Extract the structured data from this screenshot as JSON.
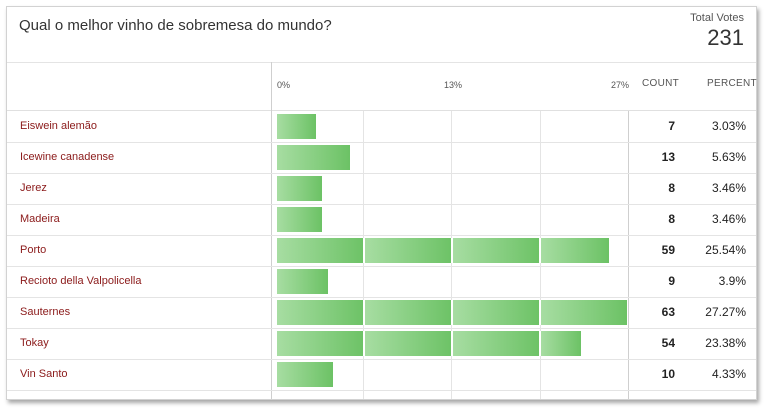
{
  "poll": {
    "question": "Qual o melhor vinho de sobremesa do mundo?",
    "total_votes_label": "Total Votes",
    "total_votes": "231"
  },
  "columns": {
    "scale_labels": [
      "0%",
      "13%",
      "27%"
    ],
    "count_label": "COUNT",
    "percent_label": "PERCENT"
  },
  "colors": {
    "bar_light": "#a7dda2",
    "bar_dark": "#6cc265",
    "label_red": "#8b1a1a"
  },
  "chart_data": {
    "type": "bar",
    "xlim": [
      0,
      27
    ],
    "categories": [
      "Eiswein alemão",
      "Icewine canadense",
      "Jerez",
      "Madeira",
      "Porto",
      "Recioto della Valpolicella",
      "Sauternes",
      "Tokay",
      "Vin Santo"
    ],
    "values": [
      3.03,
      5.63,
      3.46,
      3.46,
      25.54,
      3.9,
      27.27,
      23.38,
      4.33
    ]
  },
  "rows": [
    {
      "label": "Eiswein alemão",
      "count": "7",
      "percent": "3.03%"
    },
    {
      "label": "Icewine canadense",
      "count": "13",
      "percent": "5.63%"
    },
    {
      "label": "Jerez",
      "count": "8",
      "percent": "3.46%"
    },
    {
      "label": "Madeira",
      "count": "8",
      "percent": "3.46%"
    },
    {
      "label": "Porto",
      "count": "59",
      "percent": "25.54%"
    },
    {
      "label": "Recioto della Valpolicella",
      "count": "9",
      "percent": "3.9%"
    },
    {
      "label": "Sauternes",
      "count": "63",
      "percent": "27.27%"
    },
    {
      "label": "Tokay",
      "count": "54",
      "percent": "23.38%"
    },
    {
      "label": "Vin Santo",
      "count": "10",
      "percent": "4.33%"
    }
  ]
}
